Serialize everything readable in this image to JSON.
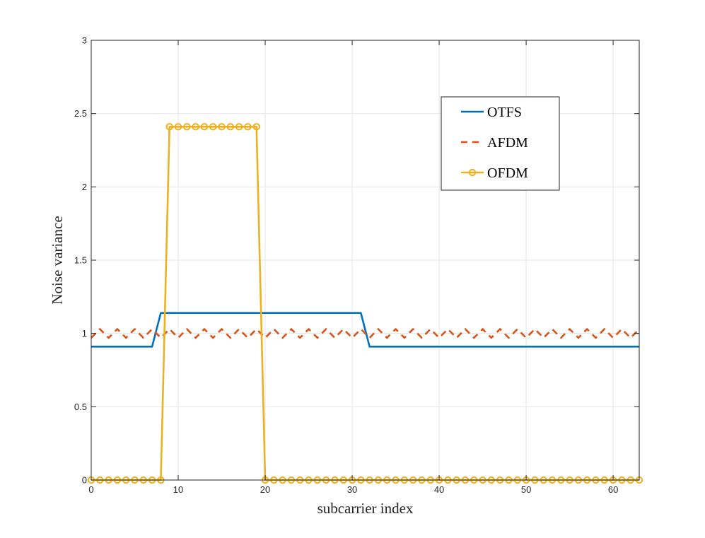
{
  "chart_data": {
    "type": "line",
    "title": "",
    "xlabel": "subcarrier index",
    "ylabel": "Noise variance",
    "xlim": [
      0,
      63
    ],
    "ylim": [
      0,
      3
    ],
    "xticks": [
      0,
      10,
      20,
      30,
      40,
      50,
      60
    ],
    "yticks": [
      0,
      0.5,
      1,
      1.5,
      2,
      2.5,
      3
    ],
    "ytick_labels": [
      "0",
      "0.5",
      "1",
      "1.5",
      "2",
      "2.5",
      "3"
    ],
    "grid": true,
    "legend_position": "upper-right-inside",
    "x": [
      0,
      1,
      2,
      3,
      4,
      5,
      6,
      7,
      8,
      9,
      10,
      11,
      12,
      13,
      14,
      15,
      16,
      17,
      18,
      19,
      20,
      21,
      22,
      23,
      24,
      25,
      26,
      27,
      28,
      29,
      30,
      31,
      32,
      33,
      34,
      35,
      36,
      37,
      38,
      39,
      40,
      41,
      42,
      43,
      44,
      45,
      46,
      47,
      48,
      49,
      50,
      51,
      52,
      53,
      54,
      55,
      56,
      57,
      58,
      59,
      60,
      61,
      62,
      63
    ],
    "series": [
      {
        "name": "OTFS",
        "color": "#0072BD",
        "style": "solid",
        "marker": "none",
        "values": [
          0.91,
          0.91,
          0.91,
          0.91,
          0.91,
          0.91,
          0.91,
          0.91,
          1.14,
          1.14,
          1.14,
          1.14,
          1.14,
          1.14,
          1.14,
          1.14,
          1.14,
          1.14,
          1.14,
          1.14,
          1.14,
          1.14,
          1.14,
          1.14,
          1.14,
          1.14,
          1.14,
          1.14,
          1.14,
          1.14,
          1.14,
          1.14,
          0.91,
          0.91,
          0.91,
          0.91,
          0.91,
          0.91,
          0.91,
          0.91,
          0.91,
          0.91,
          0.91,
          0.91,
          0.91,
          0.91,
          0.91,
          0.91,
          0.91,
          0.91,
          0.91,
          0.91,
          0.91,
          0.91,
          0.91,
          0.91,
          0.91,
          0.91,
          0.91,
          0.91,
          0.91,
          0.91,
          0.91,
          0.91
        ]
      },
      {
        "name": "AFDM",
        "color": "#D95319",
        "style": "dashed",
        "marker": "none",
        "values": [
          0.97,
          1.03,
          0.97,
          1.03,
          0.97,
          1.03,
          0.97,
          1.03,
          0.97,
          1.03,
          0.97,
          1.03,
          0.97,
          1.03,
          0.97,
          1.03,
          0.97,
          1.03,
          0.97,
          1.03,
          0.97,
          1.03,
          0.97,
          1.03,
          0.97,
          1.03,
          0.97,
          1.03,
          0.97,
          1.03,
          0.97,
          1.03,
          0.97,
          1.03,
          0.97,
          1.03,
          0.97,
          1.03,
          0.97,
          1.03,
          0.97,
          1.03,
          0.97,
          1.03,
          0.97,
          1.03,
          0.97,
          1.03,
          0.97,
          1.03,
          0.97,
          1.03,
          0.97,
          1.03,
          0.97,
          1.03,
          0.97,
          1.03,
          0.97,
          1.03,
          0.97,
          1.03,
          0.97,
          1.03
        ]
      },
      {
        "name": "OFDM",
        "color": "#EDB120",
        "style": "solid",
        "marker": "circle",
        "values": [
          0,
          0,
          0,
          0,
          0,
          0,
          0,
          0,
          0,
          2.41,
          2.41,
          2.41,
          2.41,
          2.41,
          2.41,
          2.41,
          2.41,
          2.41,
          2.41,
          2.41,
          0,
          0,
          0,
          0,
          0,
          0,
          0,
          0,
          0,
          0,
          0,
          0,
          0,
          0,
          0,
          0,
          0,
          0,
          0,
          0,
          0,
          0,
          0,
          0,
          0,
          0,
          0,
          0,
          0,
          0,
          0,
          0,
          0,
          0,
          0,
          0,
          0,
          0,
          0,
          0,
          0,
          0,
          0,
          0
        ]
      }
    ]
  }
}
